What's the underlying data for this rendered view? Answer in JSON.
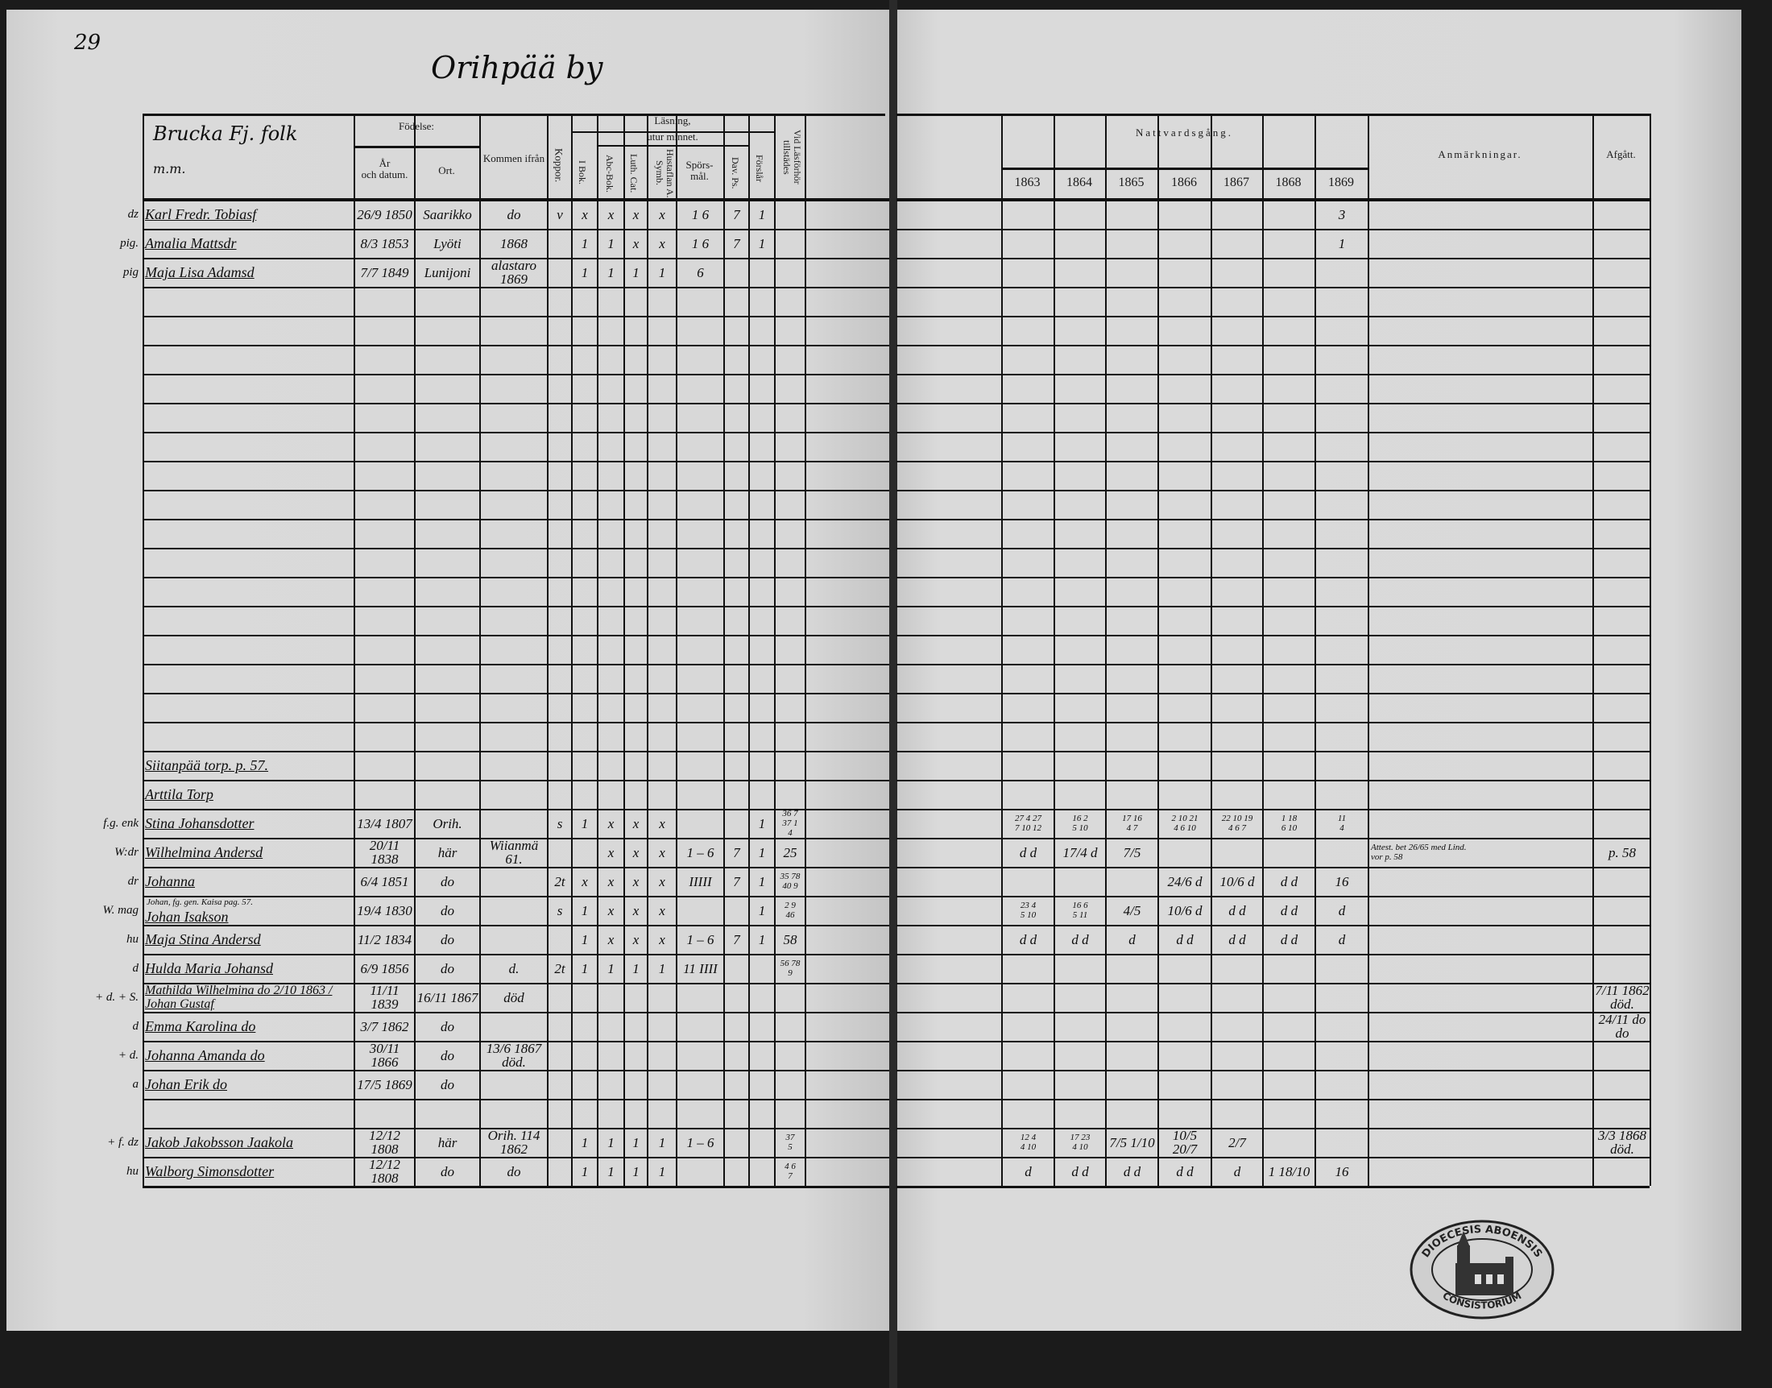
{
  "page_number": "29",
  "village_title": "Orihpää by",
  "section_heading": "Brucka Fj. folk",
  "section_subheading": "m.m.",
  "headers": {
    "fodelse": "Födelse:",
    "ar": "År\noch datum.",
    "ort": "Ort.",
    "kommen": "Kommen ifrån",
    "koppor": "Koppor.",
    "lasning": "Läsning,",
    "ibok": "I Bok.",
    "utur_minnet": "utur minnet.",
    "abc": "Abc-Bok.",
    "luth": "Luth. Cat.",
    "hust": "Hustaflan A. Symb.",
    "spors": "Spörs-\nmål.",
    "dav": "Dav. Ps.",
    "forsl": "Förslår",
    "vid": "Vid Läsförhör tillstädes",
    "nattvard": "Nattvardsgång.",
    "years": [
      "1863",
      "1864",
      "1865",
      "1866",
      "1867",
      "1868",
      "1869"
    ],
    "anm": "Anmärkningar.",
    "afgatt": "Afgått."
  },
  "rows": [
    {
      "m": "dz",
      "name": "Karl Fredr. Tobiasf",
      "date": "26/9 1850",
      "ort": "Saarikko",
      "from": "do",
      "kop": "v",
      "ibok": "x",
      "abc": "x",
      "luth": "x",
      "hust": "x",
      "spors": "1 6",
      "dav": "7",
      "forsl": "1",
      "y69": "3"
    },
    {
      "m": "pig.",
      "name": "Amalia Mattsdr",
      "date": "8/3 1853",
      "ort": "Lyöti",
      "from": "1868",
      "ibok": "1",
      "abc": "1",
      "luth": "x",
      "hust": "x",
      "spors": "1 6",
      "dav": "7",
      "forsl": "1",
      "y69": "1"
    },
    {
      "m": "pig",
      "name": "Maja Lisa Adamsd",
      "date": "7/7 1849",
      "ort": "Lunijoni",
      "from": "alastaro 1869",
      "ibok": "1",
      "abc": "1",
      "luth": "1",
      "hust": "1",
      "spors": "6"
    },
    {},
    {},
    {},
    {},
    {},
    {},
    {},
    {},
    {},
    {},
    {},
    {},
    {},
    {},
    {},
    {},
    {
      "name": "Siitanpää torp. p. 57."
    },
    {
      "name": "Arttila Torp"
    },
    {
      "m": "f.g. enk",
      "name": "Stina Johansdotter",
      "date": "13/4 1807",
      "ort": "Orih.",
      "kop": "s",
      "ibok": "1",
      "abc": "x",
      "luth": "x",
      "hust": "x",
      "forsl": "1",
      "vid": "36 7\n37 1\n4",
      "y63": "27 4 27\n7 10 12",
      "y64": "16 2\n5 10",
      "y65": "17 16\n4 7",
      "y66": "2 10 21\n4 6 10",
      "y67": "22 10 19\n4 6 7",
      "y68": "1 18\n6 10",
      "y69": "11\n4"
    },
    {
      "m": "W:dr",
      "name": "Wilhelmina Andersd",
      "date": "20/11 1838",
      "ort": "här",
      "from": "Wiianmä 61.",
      "abc": "x",
      "luth": "x",
      "hust": "x",
      "spors": "1 – 6",
      "dav": "7",
      "forsl": "1",
      "vid": "25",
      "y63": "d d",
      "y64": "17/4 d",
      "y65": "7/5",
      "anm": "Attest. bet 26/65 med Lind.\nvor p. 58",
      "afg": "p. 58"
    },
    {
      "m": "dr",
      "name": "Johanna",
      "date": "6/4 1851",
      "ort": "do",
      "kop": "2t",
      "ibok": "x",
      "abc": "x",
      "luth": "x",
      "hust": "x",
      "spors": "IIIII",
      "dav": "7",
      "forsl": "1",
      "vid": "35 78\n40 9",
      "y66": "24/6 d",
      "y67": "10/6 d",
      "y68": "d d",
      "y69": "16"
    },
    {
      "m": "W. mag",
      "note": "Johan, fg. gen. Kaisa pag. 57.",
      "name": "Johan Isakson",
      "date": "19/4 1830",
      "ort": "do",
      "kop": "s",
      "ibok": "1",
      "abc": "x",
      "luth": "x",
      "hust": "x",
      "forsl": "1",
      "vid": "2 9\n46",
      "y63": "23 4\n5 10",
      "y64": "16 6\n5 11",
      "y65": "4/5",
      "y66": "10/6 d",
      "y67": "d d",
      "y68": "d d",
      "y69": "d"
    },
    {
      "m": "hu",
      "name": "Maja Stina Andersd",
      "date": "11/2 1834",
      "ort": "do",
      "ibok": "1",
      "abc": "x",
      "luth": "x",
      "hust": "x",
      "spors": "1 – 6",
      "dav": "7",
      "forsl": "1",
      "vid": "58",
      "y63": "d d",
      "y64": "d d",
      "y65": "d",
      "y66": "d d",
      "y67": "d d",
      "y68": "d d",
      "y69": "d"
    },
    {
      "m": "d",
      "name": "Hulda Maria Johansd",
      "date": "6/9 1856",
      "ort": "do",
      "from": "d.",
      "kop": "2t",
      "ibok": "1",
      "abc": "1",
      "luth": "1",
      "hust": "1",
      "spors": "11 IIII",
      "vid": "56 78\n9"
    },
    {
      "m": "+ d. + S.",
      "name": "Mathilda Wilhelmina do 2/10 1863 / Johan Gustaf",
      "date": "11/11 1839",
      "ort": "16/11 1867",
      "from": "död",
      "afg": "7/11 1862 död."
    },
    {
      "m": "d",
      "name": "Emma Karolina do",
      "date": "3/7 1862",
      "ort": "do",
      "afg": "24/11 do do"
    },
    {
      "m": "+ d.",
      "name": "Johanna Amanda do",
      "date": "30/11 1866",
      "ort": "do",
      "from": "13/6 1867 död."
    },
    {
      "m": "a",
      "name": "Johan Erik do",
      "date": "17/5 1869",
      "ort": "do"
    },
    {},
    {
      "m": "+ f. dz",
      "name": "Jakob Jakobsson Jaakola",
      "date": "12/12 1808",
      "ort": "här",
      "from": "Orih. 114 1862",
      "ibok": "1",
      "abc": "1",
      "luth": "1",
      "hust": "1",
      "spors": "1 – 6",
      "vid": "37\n5",
      "y63": "12 4\n4 10",
      "y64": "17 23\n4 10",
      "y65": "7/5 1/10",
      "y66": "10/5 20/7",
      "y67": "2/7",
      "afg": "3/3 1868 död."
    },
    {
      "m": "hu",
      "name": "Walborg Simonsdotter",
      "date": "12/12 1808",
      "ort": "do",
      "from": "do",
      "ibok": "1",
      "abc": "1",
      "luth": "1",
      "hust": "1",
      "vid": "4 6\n7",
      "y63": "d",
      "y64": "d d",
      "y65": "d d",
      "y66": "d d",
      "y67": "d",
      "y68": "1 18/10",
      "y69": "16"
    }
  ],
  "stamp": {
    "text_top": "DIOECESIS ABOENSIS",
    "text_bottom": "CONSISTORIUM"
  },
  "colors": {
    "paper": "#d8d8d8",
    "ink": "#111111",
    "background": "#1b1b1b"
  }
}
